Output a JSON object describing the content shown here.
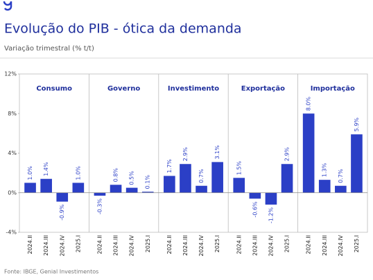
{
  "chart_data": {
    "type": "bar",
    "title": "Evolução do PIB - ótica da demanda",
    "subtitle": "Variação trimestral (% t/t)",
    "source": "Fonte: IBGE, Genial Investimentos",
    "color": "#2b3fc6",
    "ylim": [
      -4,
      12
    ],
    "yticks": [
      {
        "value": -4,
        "label": "-4%"
      },
      {
        "value": 0,
        "label": "0%"
      },
      {
        "value": 4,
        "label": "4%"
      },
      {
        "value": 8,
        "label": "8%"
      },
      {
        "value": 12,
        "label": "12%"
      }
    ],
    "panels": [
      {
        "title": "Consumo",
        "categories": [
          "2024.II",
          "2024.III",
          "2024.IV",
          "2025.I"
        ],
        "values": [
          1.0,
          1.4,
          -0.9,
          1.0
        ],
        "value_labels": [
          "1.0%",
          "1.4%",
          "-0.9%",
          "1.0%"
        ]
      },
      {
        "title": "Governo",
        "categories": [
          "2024.II",
          "2024.III",
          "2024.IV",
          "2025.I"
        ],
        "values": [
          -0.3,
          0.8,
          0.5,
          0.1
        ],
        "value_labels": [
          "-0.3%",
          "0.8%",
          "0.5%",
          "0.1%"
        ]
      },
      {
        "title": "Investimento",
        "categories": [
          "2024.II",
          "2024.III",
          "2024.IV",
          "2025.I"
        ],
        "values": [
          1.7,
          2.9,
          0.7,
          3.1
        ],
        "value_labels": [
          "1.7%",
          "2.9%",
          "0.7%",
          "3.1%"
        ]
      },
      {
        "title": "Exportação",
        "categories": [
          "2024.II",
          "2024.III",
          "2024.IV",
          "2025.I"
        ],
        "values": [
          1.5,
          -0.6,
          -1.2,
          2.9
        ],
        "value_labels": [
          "1.5%",
          "-0.6%",
          "-1.2%",
          "2.9%"
        ]
      },
      {
        "title": "Importação",
        "categories": [
          "2024.II",
          "2024.III",
          "2024.IV",
          "2025.I"
        ],
        "values": [
          8.0,
          1.3,
          0.7,
          5.9
        ],
        "value_labels": [
          "8.0%",
          "1.3%",
          "0.7%",
          "5.9%"
        ]
      }
    ]
  }
}
